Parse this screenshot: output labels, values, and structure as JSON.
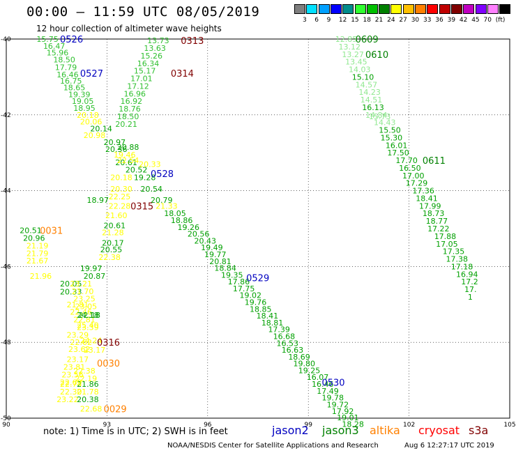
{
  "header": {
    "title": "00:00 – 11:59 UTC 08/05/2019",
    "subtitle": "12 hour collection of altimeter wave heights"
  },
  "scale": {
    "colors": [
      "#7f7f7f",
      "#00e0ff",
      "#00a0ff",
      "#0000ff",
      "#008c8c",
      "#30ff30",
      "#00c000",
      "#008000",
      "#ffff00",
      "#ffc000",
      "#ff8000",
      "#ff0000",
      "#c00000",
      "#800000",
      "#c000c0",
      "#8000ff",
      "#ff80ff",
      "#000000"
    ],
    "labels": [
      "3",
      "6",
      "9",
      "12",
      "15",
      "18",
      "21",
      "24",
      "27",
      "30",
      "33",
      "36",
      "39",
      "42",
      "45",
      "70",
      "(ft)"
    ]
  },
  "axes": {
    "lon_ticks": [
      "90",
      "93",
      "96",
      "99",
      "102",
      "105"
    ],
    "lat_ticks": [
      "-40",
      "-42",
      "-44",
      "-46",
      "-48",
      "-50"
    ]
  },
  "tracks": [
    {
      "color": "#30c030",
      "points": [
        {
          "t": "15.75",
          "lon": 90.9,
          "lat": -40.0
        },
        {
          "t": "16.47",
          "lon": 91.1,
          "lat": -40.18
        },
        {
          "t": "15.96",
          "lon": 91.2,
          "lat": -40.36
        },
        {
          "t": "18.50",
          "lon": 91.4,
          "lat": -40.54
        },
        {
          "t": "17.79",
          "lon": 91.45,
          "lat": -40.74
        },
        {
          "t": "16.46",
          "lon": 91.5,
          "lat": -40.94
        },
        {
          "t": "16.75",
          "lon": 91.6,
          "lat": -41.1
        },
        {
          "t": "18.65",
          "lon": 91.7,
          "lat": -41.28
        },
        {
          "t": "19.39",
          "lon": 91.85,
          "lat": -41.46
        },
        {
          "t": "19.05",
          "lon": 91.95,
          "lat": -41.64
        },
        {
          "t": "18.95",
          "lon": 92.0,
          "lat": -41.82
        }
      ]
    },
    {
      "color": "#ffff00",
      "points": [
        {
          "t": "20.18",
          "lon": 92.1,
          "lat": -42.0
        },
        {
          "t": "20.06",
          "lon": 92.2,
          "lat": -42.18
        },
        {
          "t": "20.98",
          "lon": 92.3,
          "lat": -42.54
        }
      ]
    },
    {
      "color": "#00a000",
      "points": [
        {
          "t": "20.14",
          "lon": 92.5,
          "lat": -42.36
        },
        {
          "t": "20.97",
          "lon": 92.9,
          "lat": -42.72
        },
        {
          "t": "20.36",
          "lon": 92.95,
          "lat": -42.9
        },
        {
          "t": "20.88",
          "lon": 93.3,
          "lat": -42.85
        },
        {
          "t": "20.61",
          "lon": 93.25,
          "lat": -43.25
        },
        {
          "t": "20.52",
          "lon": 93.55,
          "lat": -43.45
        },
        {
          "t": "19.28",
          "lon": 93.8,
          "lat": -43.65
        },
        {
          "t": "20.54",
          "lon": 94.0,
          "lat": -43.95
        },
        {
          "t": "20.79",
          "lon": 94.3,
          "lat": -44.25
        },
        {
          "t": "18.05",
          "lon": 94.7,
          "lat": -44.6
        },
        {
          "t": "18.86",
          "lon": 94.9,
          "lat": -44.78
        },
        {
          "t": "19.26",
          "lon": 95.1,
          "lat": -44.96
        },
        {
          "t": "20.56",
          "lon": 95.4,
          "lat": -45.14
        },
        {
          "t": "20.43",
          "lon": 95.6,
          "lat": -45.32
        },
        {
          "t": "19.49",
          "lon": 95.8,
          "lat": -45.5
        },
        {
          "t": "19.77",
          "lon": 95.9,
          "lat": -45.68
        },
        {
          "t": "20.81",
          "lon": 96.05,
          "lat": -45.86
        },
        {
          "t": "18.84",
          "lon": 96.2,
          "lat": -46.04
        },
        {
          "t": "19.35",
          "lon": 96.4,
          "lat": -46.22
        },
        {
          "t": "17.86",
          "lon": 96.6,
          "lat": -46.4
        },
        {
          "t": "17.75",
          "lon": 96.75,
          "lat": -46.58
        },
        {
          "t": "19.02",
          "lon": 96.95,
          "lat": -46.76
        },
        {
          "t": "19.76",
          "lon": 97.1,
          "lat": -46.94
        },
        {
          "t": "18.85",
          "lon": 97.25,
          "lat": -47.12
        },
        {
          "t": "18.41",
          "lon": 97.45,
          "lat": -47.3
        },
        {
          "t": "18.81",
          "lon": 97.6,
          "lat": -47.48
        },
        {
          "t": "17.39",
          "lon": 97.8,
          "lat": -47.66
        },
        {
          "t": "16.68",
          "lon": 97.95,
          "lat": -47.84
        },
        {
          "t": "16.53",
          "lon": 98.05,
          "lat": -48.02
        },
        {
          "t": "16.63",
          "lon": 98.2,
          "lat": -48.2
        },
        {
          "t": "18.69",
          "lon": 98.4,
          "lat": -48.38
        },
        {
          "t": "19.80",
          "lon": 98.55,
          "lat": -48.56
        },
        {
          "t": "19.25",
          "lon": 98.7,
          "lat": -48.74
        },
        {
          "t": "16.07",
          "lon": 98.95,
          "lat": -48.92
        },
        {
          "t": "16.46",
          "lon": 99.1,
          "lat": -49.1
        },
        {
          "t": "17.49",
          "lon": 99.25,
          "lat": -49.28
        },
        {
          "t": "19.78",
          "lon": 99.4,
          "lat": -49.46
        },
        {
          "t": "19.72",
          "lon": 99.55,
          "lat": -49.64
        },
        {
          "t": "17.92",
          "lon": 99.7,
          "lat": -49.82
        },
        {
          "t": "19.01",
          "lon": 99.85,
          "lat": -49.98
        },
        {
          "t": "18.28",
          "lon": 100.0,
          "lat": -50.16
        }
      ]
    },
    {
      "color": "#ffff00",
      "points": [
        {
          "t": "19.46",
          "lon": 93.2,
          "lat": -43.05
        },
        {
          "t": "22.54",
          "lon": 93.3,
          "lat": -43.2
        },
        {
          "t": "20.33",
          "lon": 93.95,
          "lat": -43.3
        },
        {
          "t": "20.18",
          "lon": 93.1,
          "lat": -43.65
        },
        {
          "t": "20.30",
          "lon": 93.1,
          "lat": -43.95
        },
        {
          "t": "22.25",
          "lon": 93.05,
          "lat": -44.15
        },
        {
          "t": "22.28",
          "lon": 93.05,
          "lat": -44.4
        },
        {
          "t": "21.60",
          "lon": 92.95,
          "lat": -44.65
        },
        {
          "t": "21.33",
          "lon": 94.45,
          "lat": -44.4
        },
        {
          "t": "21.28",
          "lon": 92.85,
          "lat": -45.1
        },
        {
          "t": "22.38",
          "lon": 92.75,
          "lat": -45.75
        },
        {
          "t": "21.81",
          "lon": 91.8,
          "lat": -47.0
        },
        {
          "t": "22.46",
          "lon": 91.9,
          "lat": -47.2
        },
        {
          "t": "22.81",
          "lon": 92.0,
          "lat": -47.4
        },
        {
          "t": "23.39",
          "lon": 92.1,
          "lat": -47.6
        },
        {
          "t": "24.24",
          "lon": 92.2,
          "lat": -47.95
        },
        {
          "t": "23.17",
          "lon": 92.3,
          "lat": -48.2
        },
        {
          "t": "22.74",
          "lon": 91.6,
          "lat": -49.1
        },
        {
          "t": "22.30",
          "lon": 91.6,
          "lat": -49.3
        },
        {
          "t": "23.22",
          "lon": 91.5,
          "lat": -49.5
        }
      ]
    },
    {
      "color": "#00a000",
      "points": [
        {
          "t": "20.61",
          "lon": 92.9,
          "lat": -44.92
        },
        {
          "t": "20.17",
          "lon": 92.85,
          "lat": -45.38
        },
        {
          "t": "20.55",
          "lon": 92.8,
          "lat": -45.55
        },
        {
          "t": "19.97",
          "lon": 92.2,
          "lat": -46.05
        },
        {
          "t": "20.87",
          "lon": 92.3,
          "lat": -46.25
        },
        {
          "t": "20.05",
          "lon": 91.6,
          "lat": -46.45
        },
        {
          "t": "20.33",
          "lon": 91.6,
          "lat": -46.66
        },
        {
          "t": "20.51",
          "lon": 90.4,
          "lat": -45.05
        },
        {
          "t": "20.96",
          "lon": 90.5,
          "lat": -45.25
        },
        {
          "t": "18.97",
          "lon": 92.4,
          "lat": -44.25
        },
        {
          "t": "21.86",
          "lon": 92.1,
          "lat": -49.1
        },
        {
          "t": "22.18",
          "lon": 92.15,
          "lat": -47.28
        },
        {
          "t": "24.18",
          "lon": 92.1,
          "lat": -47.28
        },
        {
          "t": "20.38",
          "lon": 92.1,
          "lat": -49.5
        }
      ]
    },
    {
      "color": "#ffff00",
      "points": [
        {
          "t": "21.19",
          "lon": 90.6,
          "lat": -45.45
        },
        {
          "t": "21.79",
          "lon": 90.6,
          "lat": -45.65
        },
        {
          "t": "21.67",
          "lon": 90.6,
          "lat": -45.85
        },
        {
          "t": "21.96",
          "lon": 90.7,
          "lat": -46.25
        },
        {
          "t": "23.21",
          "lon": 91.9,
          "lat": -46.45
        },
        {
          "t": "21.70",
          "lon": 91.95,
          "lat": -46.65
        },
        {
          "t": "23.25",
          "lon": 92.0,
          "lat": -46.85
        },
        {
          "t": "23.05",
          "lon": 92.05,
          "lat": -47.05
        },
        {
          "t": "25.40",
          "lon": 92.1,
          "lat": -47.55
        },
        {
          "t": "23.29",
          "lon": 91.8,
          "lat": -47.8
        },
        {
          "t": "22.62",
          "lon": 91.9,
          "lat": -48.0
        },
        {
          "t": "23.62",
          "lon": 91.85,
          "lat": -48.18
        },
        {
          "t": "23.17",
          "lon": 91.8,
          "lat": -48.45
        },
        {
          "t": "23.81",
          "lon": 91.7,
          "lat": -48.65
        },
        {
          "t": "22.38",
          "lon": 92.0,
          "lat": -48.75
        },
        {
          "t": "23.56",
          "lon": 91.65,
          "lat": -48.85
        },
        {
          "t": "22.69",
          "lon": 91.6,
          "lat": -49.05
        },
        {
          "t": "22.19",
          "lon": 92.05,
          "lat": -48.95
        },
        {
          "t": "21.78",
          "lon": 92.1,
          "lat": -49.3
        },
        {
          "t": "22.68",
          "lon": 92.2,
          "lat": -49.75
        }
      ]
    },
    {
      "color": "#30c030",
      "points": [
        {
          "t": "13.63",
          "lon": 94.1,
          "lat": -40.24
        },
        {
          "t": "15.26",
          "lon": 94.0,
          "lat": -40.44
        },
        {
          "t": "16.34",
          "lon": 93.9,
          "lat": -40.64
        },
        {
          "t": "15.17",
          "lon": 93.8,
          "lat": -40.84
        },
        {
          "t": "17.01",
          "lon": 93.7,
          "lat": -41.04
        },
        {
          "t": "17.12",
          "lon": 93.6,
          "lat": -41.24
        },
        {
          "t": "16.96",
          "lon": 93.5,
          "lat": -41.44
        },
        {
          "t": "16.92",
          "lon": 93.4,
          "lat": -41.64
        },
        {
          "t": "18.76",
          "lon": 93.35,
          "lat": -41.84
        },
        {
          "t": "18.50",
          "lon": 93.3,
          "lat": -42.04
        },
        {
          "t": "20.21",
          "lon": 93.25,
          "lat": -42.24
        },
        {
          "t": "13.73",
          "lon": 94.2,
          "lat": -40.04
        }
      ]
    },
    {
      "color": "#90e890",
      "points": [
        {
          "t": "12.85",
          "lon": 99.8,
          "lat": -40.0
        },
        {
          "t": "13.12",
          "lon": 99.9,
          "lat": -40.2
        },
        {
          "t": "13.27",
          "lon": 100.0,
          "lat": -40.4
        },
        {
          "t": "13.45",
          "lon": 100.1,
          "lat": -40.6
        },
        {
          "t": "14.03",
          "lon": 100.2,
          "lat": -40.8
        },
        {
          "t": "14.57",
          "lon": 100.4,
          "lat": -41.2
        },
        {
          "t": "14.23",
          "lon": 100.5,
          "lat": -41.4
        },
        {
          "t": "14.51",
          "lon": 100.55,
          "lat": -41.6
        },
        {
          "t": "14.84",
          "lon": 100.7,
          "lat": -42.0
        },
        {
          "t": "14.43",
          "lon": 100.95,
          "lat": -42.2
        },
        {
          "t": "15.73",
          "lon": 100.8,
          "lat": -42.04
        }
      ]
    },
    {
      "color": "#00a000",
      "points": [
        {
          "t": "15.10",
          "lon": 100.3,
          "lat": -41.0
        },
        {
          "t": "16.13",
          "lon": 100.6,
          "lat": -41.8
        },
        {
          "t": "15.50",
          "lon": 101.1,
          "lat": -42.4
        },
        {
          "t": "15.30",
          "lon": 101.15,
          "lat": -42.6
        },
        {
          "t": "16.01",
          "lon": 101.3,
          "lat": -42.8
        },
        {
          "t": "17.50",
          "lon": 101.35,
          "lat": -43.0
        },
        {
          "t": "17.70",
          "lon": 101.6,
          "lat": -43.2
        },
        {
          "t": "16.50",
          "lon": 101.7,
          "lat": -43.4
        },
        {
          "t": "17.00",
          "lon": 101.8,
          "lat": -43.6
        },
        {
          "t": "17.29",
          "lon": 101.9,
          "lat": -43.8
        },
        {
          "t": "17.36",
          "lon": 102.1,
          "lat": -44.0
        },
        {
          "t": "18.41",
          "lon": 102.2,
          "lat": -44.2
        },
        {
          "t": "17.99",
          "lon": 102.3,
          "lat": -44.4
        },
        {
          "t": "18.73",
          "lon": 102.4,
          "lat": -44.6
        },
        {
          "t": "18.77",
          "lon": 102.5,
          "lat": -44.8
        },
        {
          "t": "17.22",
          "lon": 102.55,
          "lat": -45.0
        },
        {
          "t": "17.88",
          "lon": 102.75,
          "lat": -45.2
        },
        {
          "t": "17.05",
          "lon": 102.8,
          "lat": -45.4
        },
        {
          "t": "17.35",
          "lon": 103.0,
          "lat": -45.6
        },
        {
          "t": "17.38",
          "lon": 103.1,
          "lat": -45.8
        },
        {
          "t": "17.18",
          "lon": 103.25,
          "lat": -46.0
        },
        {
          "t": "16.94",
          "lon": 103.4,
          "lat": -46.2
        },
        {
          "t": "17.2",
          "lon": 103.55,
          "lat": -46.4
        },
        {
          "t": "17.",
          "lon": 103.65,
          "lat": -46.6
        },
        {
          "t": "1",
          "lon": 103.75,
          "lat": -46.8
        }
      ]
    }
  ],
  "time_labels": [
    {
      "t": "0526",
      "color": "#0000c0",
      "lon": 91.6,
      "lat": -40.0
    },
    {
      "t": "0527",
      "color": "#0000c0",
      "lon": 92.2,
      "lat": -40.9
    },
    {
      "t": "0528",
      "color": "#0000c0",
      "lon": 94.3,
      "lat": -43.55
    },
    {
      "t": "0529",
      "color": "#0000c0",
      "lon": 97.15,
      "lat": -46.3
    },
    {
      "t": "0530",
      "color": "#0000c0",
      "lon": 99.4,
      "lat": -49.05
    },
    {
      "t": "0313",
      "color": "#800000",
      "lon": 95.2,
      "lat": -40.04
    },
    {
      "t": "0314",
      "color": "#800000",
      "lon": 94.9,
      "lat": -40.9
    },
    {
      "t": "0315",
      "color": "#800000",
      "lon": 93.7,
      "lat": -44.4
    },
    {
      "t": "0316",
      "color": "#800000",
      "lon": 92.7,
      "lat": -48.0
    },
    {
      "t": "0609",
      "color": "#008000",
      "lon": 100.4,
      "lat": -40.0
    },
    {
      "t": "0610",
      "color": "#008000",
      "lon": 100.7,
      "lat": -40.4
    },
    {
      "t": "0611",
      "color": "#008000",
      "lon": 102.4,
      "lat": -43.2
    },
    {
      "t": "0031",
      "color": "#ff8000",
      "lon": 91.0,
      "lat": -45.05
    },
    {
      "t": "0030",
      "color": "#ff8000",
      "lon": 92.7,
      "lat": -48.55
    },
    {
      "t": "0029",
      "color": "#ff8000",
      "lon": 92.9,
      "lat": -49.75
    }
  ],
  "footer": {
    "note": "note: 1) Time is in UTC; 2) SWH is in feet",
    "satellites": [
      {
        "name": "jason2",
        "color": "#0000c0"
      },
      {
        "name": "jason3",
        "color": "#008000"
      },
      {
        "name": "altika",
        "color": "#ff8000"
      },
      {
        "name": "cryosat",
        "color": "#ff0000"
      },
      {
        "name": "s3a",
        "color": "#800000"
      }
    ],
    "credit": "NOAA/NESDIS Center for Satellite Applications and Research",
    "timestamp": "Aug  6 12:27:17 UTC 2019"
  }
}
